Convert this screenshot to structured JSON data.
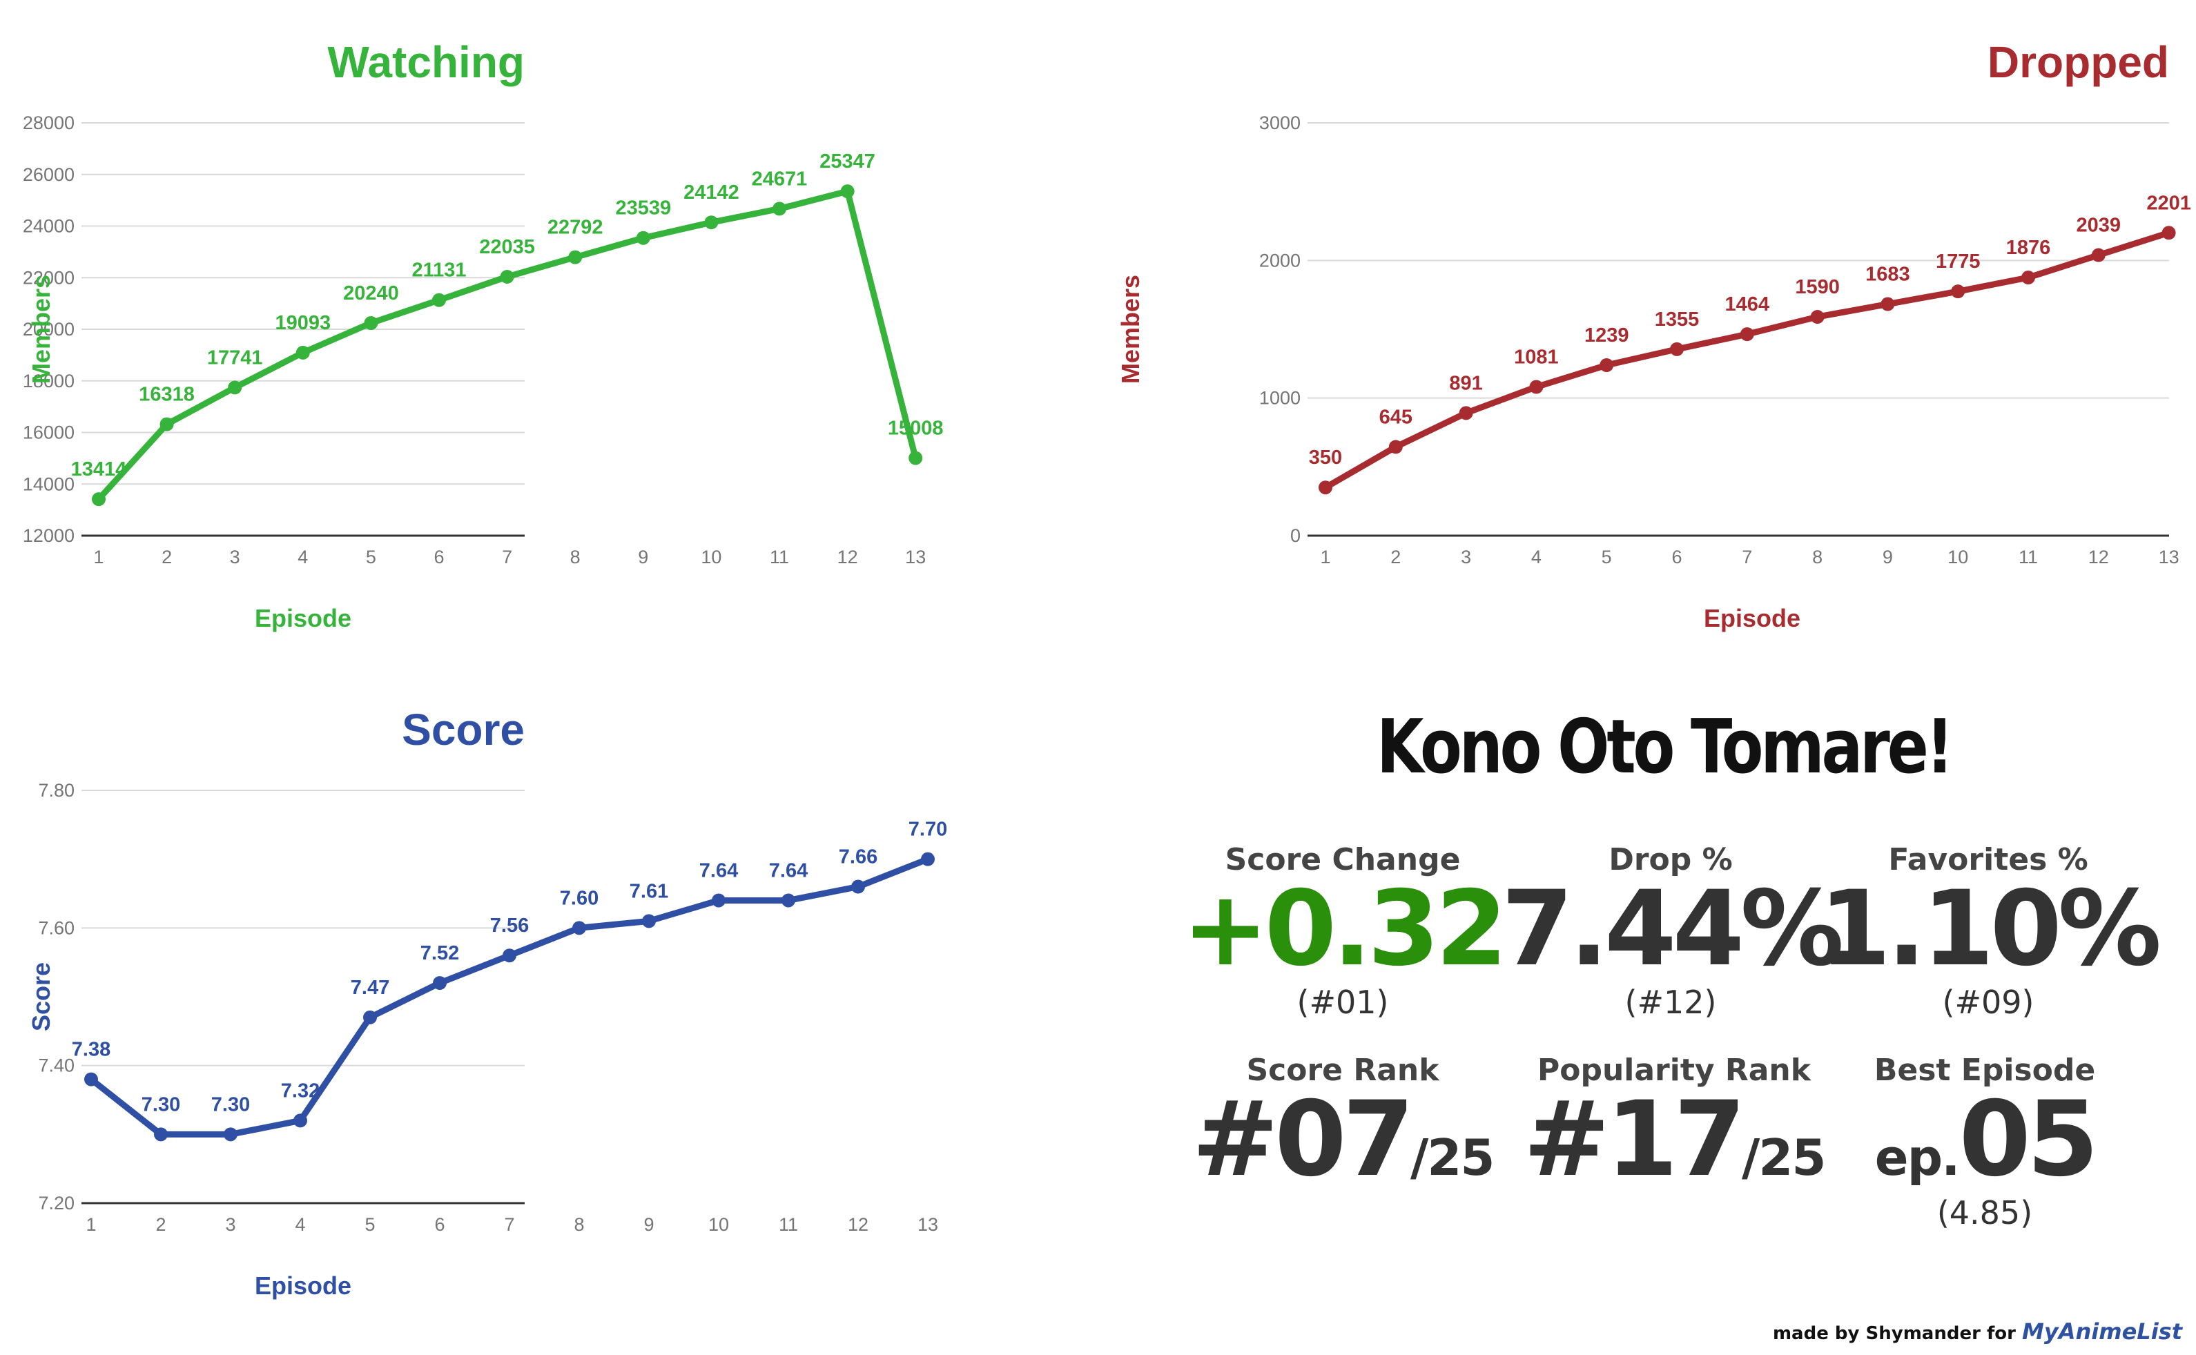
{
  "chart_data": [
    {
      "id": "watching",
      "type": "line",
      "title": "Watching",
      "xlabel": "Episode",
      "ylabel": "Members",
      "color": "#36b33a",
      "x": [
        1,
        2,
        3,
        4,
        5,
        6,
        7,
        8,
        9,
        10,
        11,
        12,
        13
      ],
      "values": [
        13414,
        16318,
        17741,
        19093,
        20240,
        21131,
        22035,
        22792,
        23539,
        24142,
        24671,
        25347,
        15008
      ],
      "data_labels": [
        "13414",
        "16318",
        "17741",
        "19093",
        "20240",
        "21131",
        "22035",
        "22792",
        "23539",
        "24142",
        "24671",
        "25347",
        "15008"
      ],
      "ylim": [
        12000,
        28000
      ],
      "yticks": [
        12000,
        14000,
        16000,
        18000,
        20000,
        22000,
        24000,
        26000,
        28000
      ],
      "ytick_labels": [
        "12000",
        "14000",
        "16000",
        "18000",
        "20000",
        "22000",
        "24000",
        "26000",
        "28000"
      ],
      "grid": true,
      "legend": "none"
    },
    {
      "id": "dropped",
      "type": "line",
      "title": "Dropped",
      "xlabel": "Episode",
      "ylabel": "Members",
      "color": "#a82b2f",
      "x": [
        1,
        2,
        3,
        4,
        5,
        6,
        7,
        8,
        9,
        10,
        11,
        12,
        13
      ],
      "values": [
        350,
        645,
        891,
        1081,
        1239,
        1355,
        1464,
        1590,
        1683,
        1775,
        1876,
        2039,
        2201
      ],
      "data_labels": [
        "350",
        "645",
        "891",
        "1081",
        "1239",
        "1355",
        "1464",
        "1590",
        "1683",
        "1775",
        "1876",
        "2039",
        "2201"
      ],
      "ylim": [
        0,
        3000
      ],
      "yticks": [
        0,
        1000,
        2000,
        3000
      ],
      "ytick_labels": [
        "0",
        "1000",
        "2000",
        "3000"
      ],
      "grid": true,
      "legend": "none"
    },
    {
      "id": "score",
      "type": "line",
      "title": "Score",
      "xlabel": "Episode",
      "ylabel": "Score",
      "color": "#2e4fa3",
      "x": [
        1,
        2,
        3,
        4,
        5,
        6,
        7,
        8,
        9,
        10,
        11,
        12,
        13
      ],
      "values": [
        7.38,
        7.3,
        7.3,
        7.32,
        7.47,
        7.52,
        7.56,
        7.6,
        7.61,
        7.64,
        7.64,
        7.66,
        7.7
      ],
      "data_labels": [
        "7.38",
        "7.30",
        "7.30",
        "7.32",
        "7.47",
        "7.52",
        "7.56",
        "7.60",
        "7.61",
        "7.64",
        "7.64",
        "7.66",
        "7.70"
      ],
      "ylim": [
        7.2,
        7.8
      ],
      "yticks": [
        7.2,
        7.4,
        7.6,
        7.8
      ],
      "ytick_labels": [
        "7.20",
        "7.40",
        "7.60",
        "7.80"
      ],
      "grid": true,
      "legend": "none"
    }
  ],
  "stats": {
    "anime_title": "Kono Oto Tomare!",
    "score_change": {
      "label": "Score Change",
      "value": "+0.32",
      "rank": "(#01)",
      "color": "#2a8f0a"
    },
    "drop_pct": {
      "label": "Drop %",
      "value": "7.44%",
      "rank": "(#12)"
    },
    "favorites_pct": {
      "label": "Favorites %",
      "value": "1.10%",
      "rank": "(#09)"
    },
    "score_rank": {
      "label": "Score Rank",
      "value": "#07",
      "total": "/25"
    },
    "popularity_rank": {
      "label": "Popularity Rank",
      "value": "#17",
      "total": "/25"
    },
    "best_episode": {
      "label": "Best Episode",
      "prefix": "ep.",
      "value": "05",
      "score": "(4.85)"
    }
  },
  "credit": {
    "text": "made by Shymander for",
    "brand": "MyAnimeList"
  }
}
